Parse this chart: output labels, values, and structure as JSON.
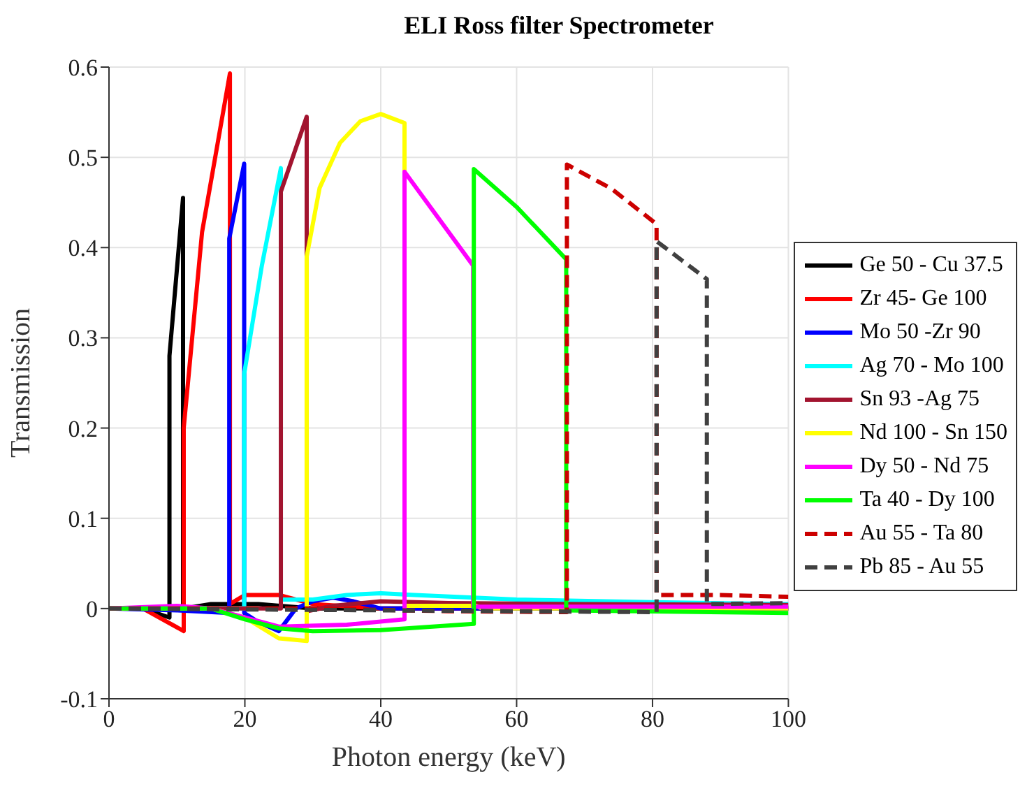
{
  "chart_data": {
    "type": "line",
    "title": "ELI Ross filter Spectrometer",
    "xlabel": "Photon energy  (keV)",
    "ylabel": "Transmission",
    "xlim": [
      0,
      100
    ],
    "xticks": [
      0,
      20,
      40,
      60,
      80,
      100
    ],
    "ylim": [
      -0.1,
      0.6
    ],
    "yticks": [
      -0.1,
      0,
      0.1,
      0.2,
      0.3,
      0.4,
      0.5,
      0.6
    ],
    "grid": true,
    "legend": "right",
    "marker": "none",
    "series": [
      {
        "name": "Ge 50 - Cu 37.5",
        "color": "#000000",
        "line_style": "solid",
        "x": [
          0,
          5,
          8.9,
          8.9,
          10.9,
          10.9,
          15,
          22,
          30,
          100
        ],
        "values": [
          0,
          0,
          -0.01,
          0.28,
          0.455,
          0,
          0.005,
          0.005,
          0,
          0
        ]
      },
      {
        "name": "Zr 45- Ge 100",
        "color": "#ff0000",
        "line_style": "solid",
        "x": [
          0,
          5,
          11,
          11,
          13.7,
          17.8,
          17.8,
          20,
          25,
          30,
          40,
          100
        ],
        "values": [
          0,
          0,
          -0.025,
          0.2,
          0.417,
          0.593,
          0.005,
          0.015,
          0.015,
          0.005,
          0,
          0
        ]
      },
      {
        "name": "Mo 50 -Zr 90",
        "color": "#0000ff",
        "line_style": "solid",
        "x": [
          0,
          10,
          17.7,
          17.7,
          19.9,
          19.9,
          22,
          25,
          27.5,
          30,
          33,
          36,
          40,
          100
        ],
        "values": [
          0,
          -0.002,
          -0.005,
          0.41,
          0.493,
          -0.005,
          -0.015,
          -0.025,
          0,
          0.008,
          0.012,
          0.008,
          0,
          0
        ]
      },
      {
        "name": "Ag 70 - Mo 100",
        "color": "#00ffff",
        "line_style": "solid",
        "x": [
          0,
          19.9,
          19.9,
          22.5,
          25.3,
          25.3,
          30,
          35,
          40,
          45,
          60,
          80,
          100
        ],
        "values": [
          0,
          0,
          0.26,
          0.38,
          0.488,
          0.01,
          0.01,
          0.015,
          0.017,
          0.015,
          0.01,
          0.007,
          0.005
        ]
      },
      {
        "name": "Sn 93 -Ag 75",
        "color": "#a2142f",
        "line_style": "solid",
        "x": [
          0,
          25.3,
          25.3,
          29.1,
          29.1,
          33,
          40,
          50,
          70,
          100
        ],
        "values": [
          0,
          0,
          0.462,
          0.545,
          -0.003,
          0.003,
          0.008,
          0.006,
          0.005,
          0.004
        ]
      },
      {
        "name": "Nd 100 - Sn 150",
        "color": "#ffff00",
        "line_style": "solid",
        "x": [
          0,
          15,
          20,
          25,
          29.1,
          29.1,
          31,
          34,
          37,
          40,
          43.5,
          43.5,
          54,
          55,
          100
        ],
        "values": [
          0,
          0,
          -0.01,
          -0.033,
          -0.036,
          0.39,
          0.466,
          0.516,
          0.54,
          0.548,
          0.538,
          0.003,
          0.003,
          0,
          0
        ]
      },
      {
        "name": "Dy 50 - Nd 75",
        "color": "#ff00ff",
        "line_style": "solid",
        "x": [
          0,
          10,
          15,
          20,
          25,
          35,
          43.5,
          43.5,
          53.6,
          53.6,
          100
        ],
        "values": [
          0,
          0.003,
          0,
          -0.01,
          -0.02,
          -0.018,
          -0.012,
          0.484,
          0.38,
          0.002,
          0.002
        ]
      },
      {
        "name": "Ta 40 - Dy 100",
        "color": "#00ff00",
        "line_style": "solid",
        "x": [
          0,
          15,
          20,
          25,
          30,
          40,
          53.7,
          53.7,
          60,
          67.3,
          67.3,
          100
        ],
        "values": [
          0,
          0,
          -0.012,
          -0.022,
          -0.025,
          -0.024,
          -0.017,
          0.487,
          0.445,
          0.387,
          -0.002,
          -0.005
        ]
      },
      {
        "name": "Au 55 - Ta 80",
        "color": "#cc0000",
        "line_style": "dashed",
        "x": [
          0,
          30,
          50,
          67.4,
          67.4,
          74,
          80.6,
          80.6,
          90,
          100
        ],
        "values": [
          0,
          0,
          -0.003,
          -0.004,
          0.492,
          0.465,
          0.426,
          0.015,
          0.015,
          0.013
        ]
      },
      {
        "name": "Pb 85 - Au 55",
        "color": "#404040",
        "line_style": "dashed",
        "x": [
          0,
          80.6,
          80.6,
          88,
          88,
          100
        ],
        "values": [
          0,
          -0.004,
          0.407,
          0.365,
          0.005,
          0.006
        ]
      }
    ]
  }
}
